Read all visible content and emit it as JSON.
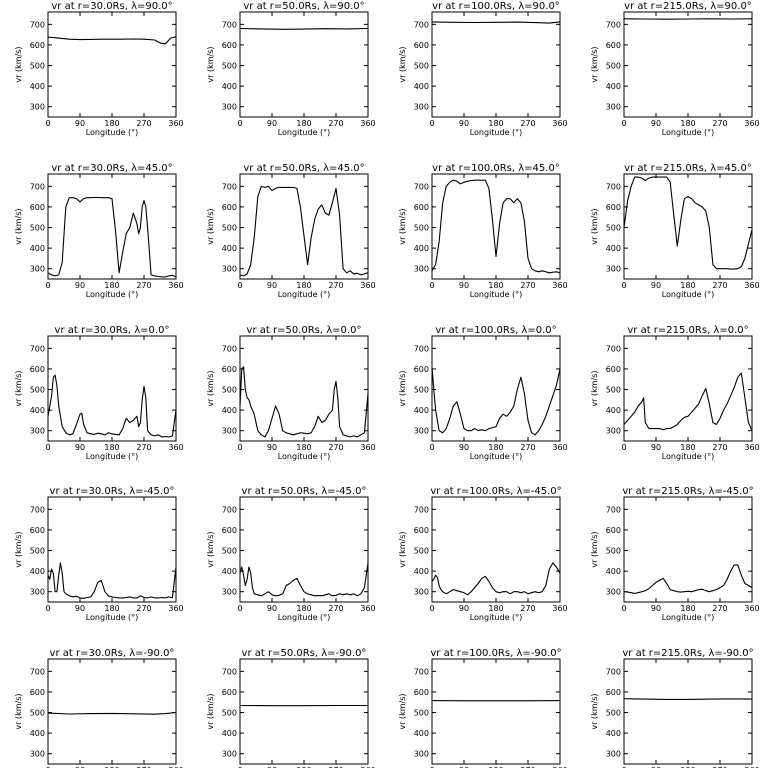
{
  "chart_data": {
    "type": "line",
    "xlabel": "Longitude (°)",
    "ylabel": "vr (km/s)",
    "xlim": [
      0,
      360
    ],
    "ylim": [
      250,
      760
    ],
    "xticks": [
      "0",
      "90",
      "180",
      "270",
      "360"
    ],
    "yticks": [
      "300",
      "400",
      "500",
      "600",
      "700"
    ],
    "grid": false,
    "panels": [
      {
        "title": "vr at r=30.0Rs, λ=90.0°",
        "x": [
          0,
          30,
          60,
          90,
          120,
          150,
          180,
          210,
          240,
          270,
          300,
          315,
          330,
          345,
          360
        ],
        "y": [
          638,
          633,
          628,
          626,
          627,
          628,
          628,
          628,
          629,
          628,
          624,
          610,
          605,
          633,
          640
        ]
      },
      {
        "title": "vr at r=50.0Rs, λ=90.0°",
        "x": [
          0,
          60,
          120,
          180,
          240,
          300,
          360
        ],
        "y": [
          680,
          678,
          676,
          677,
          679,
          678,
          680
        ]
      },
      {
        "title": "vr at r=100.0Rs, λ=90.0°",
        "x": [
          0,
          60,
          120,
          180,
          240,
          300,
          330,
          360
        ],
        "y": [
          712,
          710,
          709,
          710,
          711,
          708,
          706,
          712
        ]
      },
      {
        "title": "vr at r=215.0Rs, λ=90.0°",
        "x": [
          0,
          60,
          120,
          180,
          240,
          300,
          360
        ],
        "y": [
          727,
          726,
          725,
          726,
          727,
          726,
          727
        ]
      },
      {
        "title": "vr at r=30.0Rs, λ=45.0°",
        "x": [
          0,
          10,
          20,
          30,
          40,
          50,
          60,
          70,
          80,
          90,
          100,
          110,
          120,
          130,
          140,
          150,
          160,
          170,
          180,
          190,
          200,
          210,
          220,
          230,
          240,
          250,
          255,
          260,
          265,
          270,
          275,
          280,
          290,
          300,
          310,
          320,
          330,
          340,
          350,
          360
        ],
        "y": [
          280,
          270,
          265,
          270,
          330,
          600,
          645,
          645,
          640,
          625,
          640,
          645,
          645,
          646,
          646,
          645,
          645,
          645,
          640,
          480,
          280,
          380,
          470,
          500,
          570,
          520,
          470,
          500,
          600,
          632,
          600,
          500,
          270,
          265,
          262,
          260,
          260,
          265,
          268,
          260
        ]
      },
      {
        "title": "vr at r=50.0Rs, λ=45.0°",
        "x": [
          0,
          10,
          20,
          30,
          40,
          50,
          60,
          70,
          80,
          90,
          100,
          110,
          120,
          130,
          140,
          150,
          160,
          170,
          180,
          190,
          200,
          210,
          220,
          230,
          240,
          250,
          260,
          270,
          280,
          290,
          300,
          310,
          320,
          330,
          340,
          350,
          360
        ],
        "y": [
          270,
          265,
          275,
          320,
          450,
          650,
          700,
          695,
          700,
          680,
          690,
          695,
          695,
          695,
          695,
          695,
          690,
          600,
          460,
          320,
          450,
          540,
          590,
          610,
          570,
          560,
          620,
          690,
          560,
          300,
          280,
          290,
          275,
          278,
          270,
          275,
          280
        ]
      },
      {
        "title": "vr at r=100.0Rs, λ=45.0°",
        "x": [
          0,
          10,
          20,
          30,
          40,
          50,
          60,
          70,
          80,
          90,
          100,
          110,
          120,
          130,
          140,
          150,
          160,
          170,
          180,
          190,
          200,
          210,
          220,
          230,
          240,
          250,
          260,
          270,
          280,
          290,
          300,
          310,
          320,
          330,
          340,
          350,
          360
        ],
        "y": [
          290,
          320,
          430,
          620,
          700,
          720,
          730,
          725,
          712,
          720,
          725,
          728,
          730,
          730,
          730,
          730,
          690,
          540,
          360,
          520,
          620,
          640,
          640,
          620,
          640,
          620,
          530,
          350,
          300,
          290,
          285,
          290,
          285,
          280,
          283,
          285,
          280
        ]
      },
      {
        "title": "vr at r=215.0Rs, λ=45.0°",
        "x": [
          0,
          10,
          20,
          30,
          40,
          50,
          60,
          70,
          80,
          90,
          100,
          110,
          120,
          130,
          140,
          150,
          160,
          170,
          180,
          190,
          200,
          210,
          220,
          230,
          240,
          250,
          260,
          270,
          280,
          290,
          300,
          310,
          320,
          330,
          340,
          350,
          360
        ],
        "y": [
          500,
          630,
          700,
          745,
          745,
          740,
          728,
          740,
          745,
          745,
          745,
          745,
          745,
          720,
          560,
          410,
          540,
          640,
          650,
          640,
          620,
          610,
          600,
          580,
          500,
          320,
          300,
          300,
          300,
          300,
          298,
          298,
          300,
          310,
          350,
          420,
          490
        ]
      },
      {
        "title": "vr at r=30.0Rs, λ=0.0°",
        "x": [
          0,
          10,
          15,
          20,
          25,
          30,
          40,
          50,
          60,
          70,
          80,
          90,
          95,
          100,
          110,
          120,
          130,
          140,
          150,
          160,
          170,
          180,
          190,
          200,
          210,
          220,
          230,
          240,
          250,
          255,
          260,
          265,
          270,
          275,
          280,
          290,
          300,
          310,
          320,
          330,
          340,
          350,
          360
        ],
        "y": [
          370,
          470,
          560,
          570,
          520,
          420,
          320,
          290,
          280,
          285,
          330,
          380,
          385,
          330,
          290,
          285,
          282,
          288,
          285,
          280,
          290,
          285,
          282,
          280,
          310,
          360,
          340,
          350,
          370,
          320,
          340,
          450,
          515,
          460,
          300,
          280,
          275,
          280,
          270,
          272,
          270,
          275,
          400
        ]
      },
      {
        "title": "vr at r=50.0Rs, λ=0.0°",
        "x": [
          0,
          5,
          10,
          15,
          20,
          25,
          30,
          40,
          50,
          60,
          70,
          80,
          90,
          100,
          110,
          120,
          130,
          140,
          150,
          160,
          170,
          180,
          190,
          200,
          210,
          220,
          230,
          240,
          250,
          260,
          265,
          270,
          275,
          280,
          290,
          300,
          310,
          320,
          330,
          340,
          350,
          360
        ],
        "y": [
          420,
          600,
          610,
          500,
          460,
          450,
          420,
          380,
          300,
          280,
          270,
          300,
          360,
          420,
          380,
          300,
          290,
          285,
          280,
          285,
          290,
          288,
          285,
          290,
          320,
          370,
          340,
          350,
          380,
          400,
          500,
          540,
          460,
          320,
          280,
          275,
          270,
          275,
          270,
          280,
          290,
          480
        ]
      },
      {
        "title": "vr at r=100.0Rs, λ=0.0°",
        "x": [
          0,
          5,
          10,
          20,
          30,
          40,
          50,
          60,
          70,
          80,
          90,
          100,
          110,
          120,
          130,
          140,
          150,
          160,
          170,
          180,
          190,
          200,
          210,
          220,
          230,
          240,
          250,
          260,
          270,
          280,
          290,
          300,
          310,
          320,
          330,
          340,
          350,
          360
        ],
        "y": [
          610,
          500,
          400,
          300,
          290,
          310,
          360,
          420,
          440,
          380,
          310,
          300,
          300,
          310,
          300,
          305,
          300,
          310,
          315,
          320,
          360,
          380,
          370,
          390,
          420,
          500,
          560,
          480,
          350,
          290,
          280,
          300,
          330,
          370,
          420,
          470,
          520,
          600
        ]
      },
      {
        "title": "vr at r=215.0Rs, λ=0.0°",
        "x": [
          0,
          10,
          20,
          30,
          40,
          50,
          55,
          60,
          70,
          80,
          90,
          100,
          110,
          120,
          130,
          140,
          150,
          160,
          170,
          180,
          190,
          200,
          210,
          220,
          230,
          240,
          250,
          260,
          270,
          280,
          290,
          300,
          310,
          320,
          330,
          340,
          350,
          360
        ],
        "y": [
          330,
          350,
          370,
          390,
          420,
          440,
          460,
          340,
          310,
          310,
          310,
          310,
          305,
          310,
          310,
          320,
          330,
          350,
          365,
          370,
          390,
          410,
          430,
          470,
          505,
          430,
          340,
          330,
          360,
          400,
          430,
          470,
          510,
          560,
          580,
          460,
          340,
          300
        ]
      },
      {
        "title": "vr at r=30.0Rs, λ=-45.0°",
        "x": [
          0,
          5,
          10,
          15,
          20,
          25,
          30,
          35,
          40,
          45,
          50,
          60,
          70,
          80,
          90,
          100,
          110,
          120,
          130,
          140,
          150,
          160,
          170,
          180,
          190,
          200,
          210,
          220,
          230,
          240,
          250,
          260,
          270,
          280,
          290,
          300,
          310,
          320,
          330,
          340,
          350,
          360
        ],
        "y": [
          380,
          360,
          410,
          390,
          300,
          300,
          380,
          440,
          390,
          300,
          290,
          280,
          275,
          278,
          270,
          268,
          272,
          275,
          300,
          345,
          355,
          300,
          280,
          275,
          272,
          270,
          270,
          272,
          275,
          270,
          270,
          280,
          272,
          270,
          275,
          270,
          270,
          272,
          270,
          275,
          270,
          420
        ]
      },
      {
        "title": "vr at r=50.0Rs, λ=-45.0°",
        "x": [
          0,
          5,
          10,
          15,
          20,
          25,
          30,
          35,
          40,
          50,
          60,
          70,
          80,
          90,
          100,
          110,
          120,
          130,
          140,
          150,
          160,
          170,
          180,
          190,
          200,
          210,
          220,
          230,
          240,
          250,
          260,
          270,
          280,
          290,
          300,
          310,
          320,
          330,
          340,
          350,
          360
        ],
        "y": [
          390,
          420,
          380,
          330,
          360,
          420,
          390,
          320,
          290,
          285,
          280,
          290,
          300,
          285,
          280,
          282,
          290,
          330,
          340,
          355,
          365,
          330,
          300,
          290,
          285,
          280,
          282,
          280,
          285,
          290,
          280,
          282,
          290,
          285,
          290,
          285,
          290,
          280,
          290,
          320,
          440
        ]
      },
      {
        "title": "vr at r=100.0Rs, λ=-45.0°",
        "x": [
          0,
          5,
          10,
          15,
          20,
          25,
          30,
          40,
          50,
          60,
          70,
          80,
          90,
          100,
          110,
          120,
          130,
          140,
          150,
          160,
          170,
          180,
          190,
          200,
          210,
          220,
          230,
          240,
          250,
          260,
          270,
          280,
          290,
          300,
          310,
          320,
          330,
          340,
          350,
          360
        ],
        "y": [
          350,
          360,
          380,
          370,
          330,
          310,
          300,
          290,
          300,
          310,
          305,
          300,
          295,
          285,
          300,
          320,
          340,
          365,
          375,
          350,
          320,
          300,
          295,
          300,
          300,
          290,
          300,
          300,
          295,
          300,
          290,
          295,
          300,
          295,
          300,
          330,
          410,
          440,
          420,
          390
        ]
      },
      {
        "title": "vr at r=215.0Rs, λ=-45.0°",
        "x": [
          0,
          10,
          20,
          30,
          40,
          50,
          60,
          70,
          80,
          90,
          100,
          110,
          120,
          130,
          140,
          150,
          160,
          170,
          180,
          190,
          200,
          210,
          220,
          230,
          240,
          250,
          260,
          270,
          280,
          290,
          300,
          310,
          320,
          330,
          340,
          350,
          360
        ],
        "y": [
          300,
          298,
          295,
          292,
          295,
          300,
          305,
          315,
          330,
          345,
          355,
          365,
          340,
          310,
          305,
          300,
          298,
          300,
          302,
          300,
          305,
          310,
          312,
          305,
          300,
          305,
          310,
          320,
          330,
          360,
          400,
          430,
          430,
          380,
          340,
          330,
          320
        ]
      },
      {
        "title": "vr at r=30.0Rs, λ=-90.0°",
        "x": [
          0,
          60,
          120,
          180,
          240,
          300,
          330,
          360
        ],
        "y": [
          497,
          493,
          495,
          496,
          494,
          492,
          495,
          500
        ]
      },
      {
        "title": "vr at r=50.0Rs, λ=-90.0°",
        "x": [
          0,
          90,
          180,
          270,
          360
        ],
        "y": [
          534,
          533,
          533,
          534,
          534
        ]
      },
      {
        "title": "vr at r=100.0Rs, λ=-90.0°",
        "x": [
          0,
          90,
          180,
          270,
          360
        ],
        "y": [
          558,
          557,
          557,
          557,
          558
        ]
      },
      {
        "title": "vr at r=215.0Rs, λ=-90.0°",
        "x": [
          0,
          60,
          120,
          180,
          240,
          300,
          360
        ],
        "y": [
          567,
          565,
          564,
          564,
          565,
          566,
          565
        ]
      }
    ]
  }
}
